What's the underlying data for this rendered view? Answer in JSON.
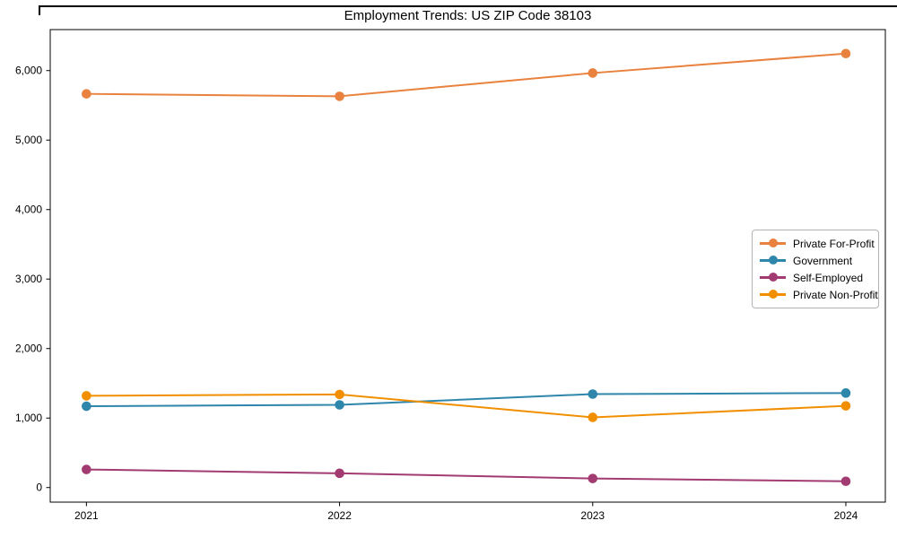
{
  "window": {
    "top_border_color": "#000000"
  },
  "chart_data": {
    "type": "line",
    "title": "Employment Trends: US ZIP Code 38103",
    "x": [
      2021,
      2022,
      2023,
      2024
    ],
    "x_tick_labels": [
      "2021",
      "2022",
      "2023",
      "2024"
    ],
    "series": [
      {
        "name": "Private For-Profit",
        "color": "#e8823e",
        "values": [
          5665,
          5630,
          5965,
          6245
        ]
      },
      {
        "name": "Government",
        "color": "#2e86ab",
        "values": [
          1170,
          1190,
          1345,
          1360
        ]
      },
      {
        "name": "Self-Employed",
        "color": "#a23b72",
        "values": [
          260,
          205,
          130,
          90
        ]
      },
      {
        "name": "Private Non-Profit",
        "color": "#f18f01",
        "values": [
          1320,
          1340,
          1010,
          1175
        ]
      }
    ],
    "yticks": [
      {
        "value": 0,
        "label": "0"
      },
      {
        "value": 1000,
        "label": "1,000"
      },
      {
        "value": 2000,
        "label": "2,000"
      },
      {
        "value": 3000,
        "label": "3,000"
      },
      {
        "value": 4000,
        "label": "4,000"
      },
      {
        "value": 5000,
        "label": "5,000"
      },
      {
        "value": 6000,
        "label": "6,000"
      }
    ],
    "ylim": [
      -210,
      6590
    ],
    "xlim": [
      2020.857,
      2024.156
    ],
    "grid": false,
    "legend_position": "center right",
    "axis_color": "#000000",
    "marker": "circle"
  }
}
